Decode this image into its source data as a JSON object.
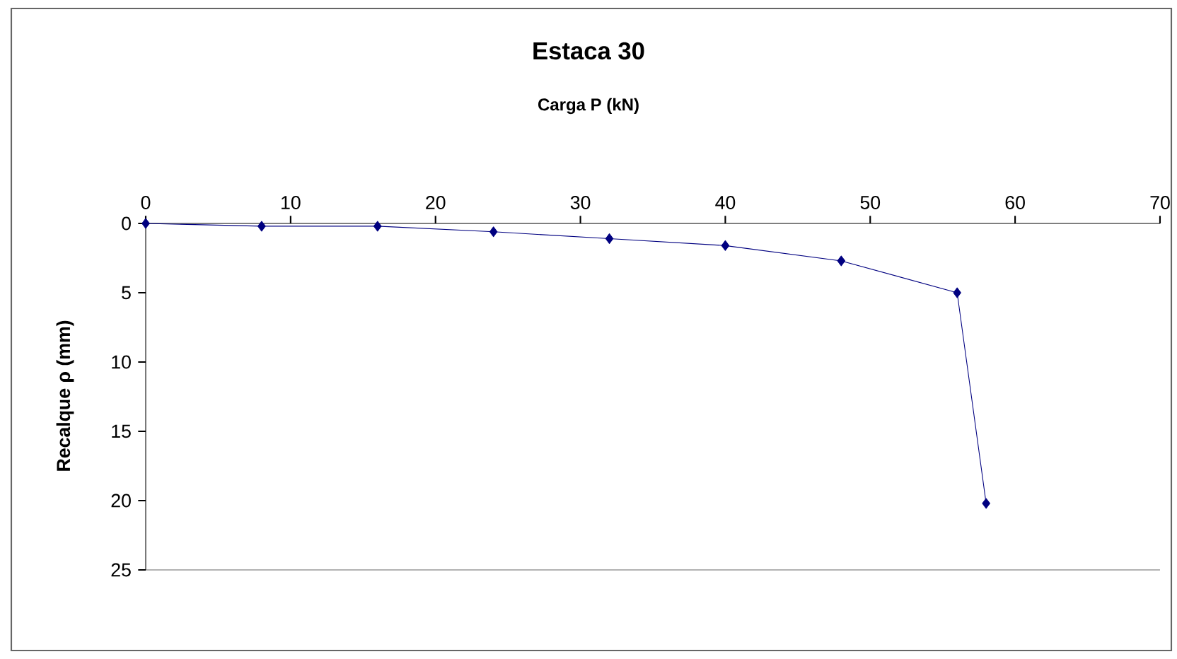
{
  "chart_data": {
    "type": "line",
    "title": "Estaca 30",
    "xlabel": "Carga P (kN)",
    "ylabel": "Recalque ρ (mm)",
    "x": [
      0,
      8,
      16,
      24,
      32,
      40,
      48,
      56,
      58
    ],
    "series": [
      {
        "color": "#000080",
        "values": [
          0,
          0.2,
          0.2,
          0.6,
          1.1,
          1.6,
          2.7,
          5.0,
          20.2
        ]
      }
    ],
    "xlim": [
      0,
      70
    ],
    "xticks": [
      0,
      10,
      20,
      30,
      40,
      50,
      60,
      70
    ],
    "ylim": [
      25,
      0
    ],
    "yticks": [
      0,
      5,
      10,
      15,
      20,
      25
    ],
    "marker": "diamond",
    "line_style": "solid",
    "grid": false
  }
}
